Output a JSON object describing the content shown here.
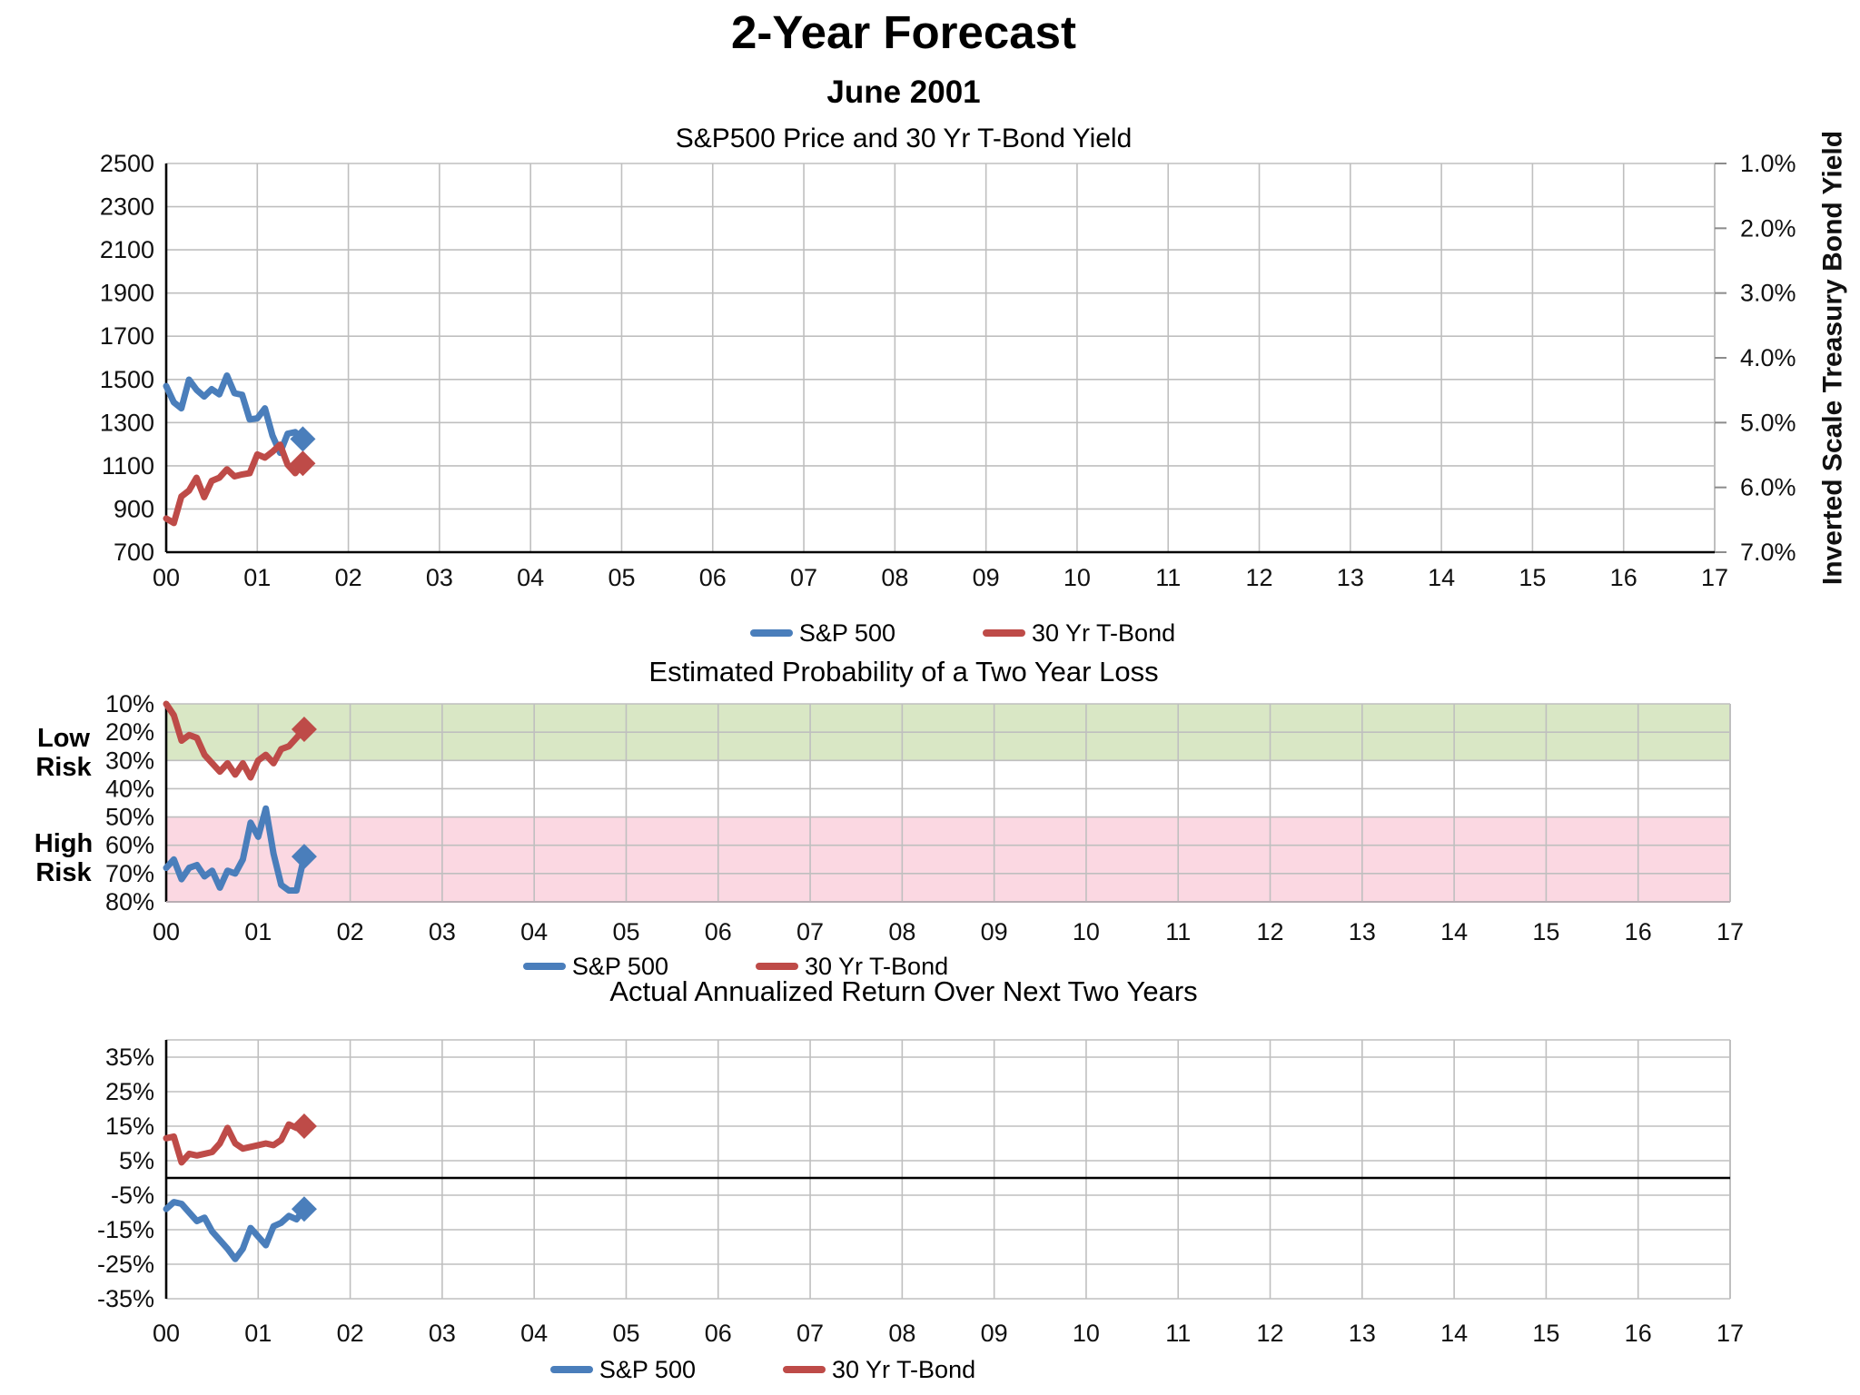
{
  "page": {
    "title": "2-Year Forecast",
    "date_subtitle": "June 2001"
  },
  "legend": {
    "sp500": "S&P 500",
    "tbond": "30 Yr T-Bond"
  },
  "colors": {
    "sp500": "#4A7EBB",
    "tbond": "#BE4B48",
    "low_risk_band": "#D9E7C5",
    "high_risk_band": "#FBD8E2",
    "gridline": "#BFBFBF",
    "axis": "#000000"
  },
  "risk_labels": {
    "low": [
      "Low",
      "Risk"
    ],
    "high": [
      "High",
      "Risk"
    ]
  },
  "chart_data": [
    {
      "type": "line",
      "title": "S&P500 Price and 30 Yr T-Bond Yield",
      "x_tick_labels": [
        "00",
        "01",
        "02",
        "03",
        "04",
        "05",
        "06",
        "07",
        "08",
        "09",
        "10",
        "11",
        "12",
        "13",
        "14",
        "15",
        "16",
        "17"
      ],
      "points_per_year": 12,
      "y_left": {
        "range": [
          700,
          2500
        ],
        "tick_values": [
          2500,
          2300,
          2100,
          1900,
          1700,
          1500,
          1300,
          1100,
          900,
          700
        ],
        "tick_labels": [
          "2500",
          "2300",
          "2100",
          "1900",
          "1700",
          "1500",
          "1300",
          "1100",
          "900",
          "700"
        ]
      },
      "y_right": {
        "title": "Inverted Scale Treasury Bond Yield",
        "inverted": true,
        "range": [
          1.0,
          7.0
        ],
        "tick_values": [
          1,
          2,
          3,
          4,
          5,
          6,
          7
        ],
        "tick_labels": [
          "1.0%",
          "2.0%",
          "3.0%",
          "4.0%",
          "5.0%",
          "6.0%",
          "7.0%"
        ]
      },
      "series": [
        {
          "name": "S&P 500",
          "color_key": "sp500",
          "axis": "left",
          "end_marker": "diamond",
          "values": [
            1469,
            1394,
            1366,
            1499,
            1452,
            1421,
            1455,
            1431,
            1518,
            1436,
            1429,
            1315,
            1320,
            1366,
            1240,
            1160,
            1249,
            1256,
            1224
          ]
        },
        {
          "name": "30 Yr T-Bond",
          "color_key": "tbond",
          "axis": "right",
          "end_marker": "diamond",
          "values": [
            6.48,
            6.55,
            6.14,
            6.05,
            5.85,
            6.15,
            5.9,
            5.85,
            5.72,
            5.83,
            5.8,
            5.78,
            5.49,
            5.54,
            5.45,
            5.34,
            5.65,
            5.78,
            5.63
          ]
        }
      ]
    },
    {
      "type": "line",
      "title": "Estimated Probability of a Two Year Loss",
      "x_tick_labels": [
        "00",
        "01",
        "02",
        "03",
        "04",
        "05",
        "06",
        "07",
        "08",
        "09",
        "10",
        "11",
        "12",
        "13",
        "14",
        "15",
        "16",
        "17"
      ],
      "points_per_year": 12,
      "y": {
        "inverted": true,
        "range": [
          10,
          80
        ],
        "tick_values": [
          10,
          20,
          30,
          40,
          50,
          60,
          70,
          80
        ],
        "tick_labels": [
          "10%",
          "20%",
          "30%",
          "40%",
          "50%",
          "60%",
          "70%",
          "80%"
        ]
      },
      "bands": [
        {
          "name": "Low Risk",
          "from": 10,
          "to": 30,
          "color_key": "low_risk_band"
        },
        {
          "name": "High Risk",
          "from": 50,
          "to": 80,
          "color_key": "high_risk_band"
        }
      ],
      "series": [
        {
          "name": "S&P 500",
          "color_key": "sp500",
          "end_marker": "diamond",
          "values": [
            68,
            65,
            72,
            68,
            67,
            71,
            69,
            75,
            69,
            70,
            65,
            52,
            57,
            47,
            63,
            74,
            76,
            76,
            64
          ]
        },
        {
          "name": "30 Yr T-Bond",
          "color_key": "tbond",
          "end_marker": "diamond",
          "values": [
            10,
            14,
            23,
            21,
            22,
            28,
            31,
            34,
            31,
            35,
            31,
            36,
            30,
            28,
            31,
            26,
            25,
            22,
            19
          ]
        }
      ]
    },
    {
      "type": "line",
      "title": "Actual Annualized Return Over Next Two Years",
      "x_tick_labels": [
        "00",
        "01",
        "02",
        "03",
        "04",
        "05",
        "06",
        "07",
        "08",
        "09",
        "10",
        "11",
        "12",
        "13",
        "14",
        "15",
        "16",
        "17"
      ],
      "points_per_year": 12,
      "y": {
        "inverted": false,
        "range": [
          -35,
          40
        ],
        "tick_values": [
          35,
          25,
          15,
          5,
          -5,
          -15,
          -25,
          -35
        ],
        "tick_labels": [
          "35%",
          "25%",
          "15%",
          "5%",
          "-5%",
          "-15%",
          "-25%",
          "-35%"
        ]
      },
      "zero_line": true,
      "series": [
        {
          "name": "S&P 500",
          "color_key": "sp500",
          "end_marker": "diamond",
          "values": [
            -9,
            -7,
            -7.5,
            -10,
            -12.5,
            -11.5,
            -15.5,
            -18,
            -20.5,
            -23.5,
            -20.5,
            -14.5,
            -17,
            -19.5,
            -14,
            -13,
            -11,
            -12,
            -9
          ]
        },
        {
          "name": "30 Yr T-Bond",
          "color_key": "tbond",
          "end_marker": "diamond",
          "values": [
            11.5,
            12,
            4.5,
            7,
            6.5,
            7,
            7.5,
            10,
            14.5,
            10,
            8.5,
            9,
            9.5,
            10,
            9.5,
            11,
            15.5,
            14.5,
            15
          ]
        }
      ]
    }
  ]
}
